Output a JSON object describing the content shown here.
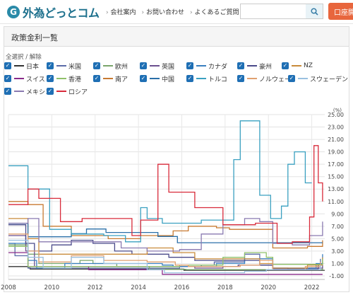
{
  "header": {
    "logo_mark": "G",
    "logo_text": "外為どっとコム",
    "nav": [
      "会社案内",
      "お問い合わせ",
      "よくあるご質問"
    ],
    "search_placeholder": "",
    "account_label": "口座開"
  },
  "panel": {
    "title": "政策金利一覧",
    "toggle_label": "全選択 / 解除"
  },
  "legend": [
    {
      "label": "日本",
      "color": "#333333"
    },
    {
      "label": "米国",
      "color": "#5b6ba8"
    },
    {
      "label": "欧州",
      "color": "#7aa66b"
    },
    {
      "label": "英国",
      "color": "#6b4f8f"
    },
    {
      "label": "カナダ",
      "color": "#3a7fbf"
    },
    {
      "label": "豪州",
      "color": "#4a4a8a"
    },
    {
      "label": "NZ",
      "color": "#c98b3a"
    },
    {
      "label": "スイス",
      "color": "#8a2a8a"
    },
    {
      "label": "香港",
      "color": "#8fc06a"
    },
    {
      "label": "南ア",
      "color": "#c87a32"
    },
    {
      "label": "中国",
      "color": "#2a6fa8"
    },
    {
      "label": "トルコ",
      "color": "#3aa0c0"
    },
    {
      "label": "ノルウェー",
      "color": "#e0a070"
    },
    {
      "label": "スウェーデン",
      "color": "#9ac0e0"
    },
    {
      "label": "メキシコ",
      "color": "#8a7ab0"
    },
    {
      "label": "ロシア",
      "color": "#d82a3a"
    }
  ],
  "chart_data": {
    "type": "line",
    "ylabel": "(%)",
    "ylim": [
      -1,
      25
    ],
    "yticks": [
      "25.00",
      "23.00",
      "21.00",
      "19.00",
      "17.00",
      "15.00",
      "13.00",
      "11.00",
      "9.00",
      "7.00",
      "5.00",
      "3.00",
      "1.00",
      "-1.00"
    ],
    "xlim": [
      2008,
      2022.6
    ],
    "xticks": [
      "2008",
      "2010",
      "2012",
      "2014",
      "2016",
      "2018",
      "2020",
      "2022"
    ],
    "grid": true,
    "series": [
      {
        "name": "日本",
        "color": "#333333",
        "points": [
          [
            2008,
            0.5
          ],
          [
            2008.9,
            0.3
          ],
          [
            2009,
            0.1
          ],
          [
            2016,
            0.1
          ],
          [
            2016.1,
            -0.1
          ],
          [
            2022.6,
            -0.1
          ]
        ]
      },
      {
        "name": "米国",
        "color": "#5b6ba8",
        "points": [
          [
            2008,
            4.25
          ],
          [
            2008.3,
            2.25
          ],
          [
            2008.9,
            0.25
          ],
          [
            2015.9,
            0.5
          ],
          [
            2016.9,
            0.75
          ],
          [
            2017.5,
            1.25
          ],
          [
            2018.9,
            2.5
          ],
          [
            2019.6,
            1.75
          ],
          [
            2020.2,
            0.25
          ],
          [
            2022.2,
            0.5
          ],
          [
            2022.4,
            1.75
          ]
        ]
      },
      {
        "name": "欧州",
        "color": "#7aa66b",
        "points": [
          [
            2008,
            4
          ],
          [
            2008.9,
            2.5
          ],
          [
            2009.4,
            1
          ],
          [
            2011.3,
            1.5
          ],
          [
            2011.9,
            1
          ],
          [
            2013,
            0.5
          ],
          [
            2014.5,
            0.05
          ],
          [
            2016.2,
            0
          ],
          [
            2022.5,
            0.5
          ]
        ]
      },
      {
        "name": "英国",
        "color": "#6b4f8f",
        "points": [
          [
            2008,
            5.5
          ],
          [
            2008.8,
            3
          ],
          [
            2009.2,
            0.5
          ],
          [
            2016.6,
            0.25
          ],
          [
            2017.9,
            0.5
          ],
          [
            2018.6,
            0.75
          ],
          [
            2020.2,
            0.1
          ],
          [
            2021.9,
            0.25
          ],
          [
            2022.5,
            1.25
          ]
        ]
      },
      {
        "name": "カナダ",
        "color": "#3a7fbf",
        "points": [
          [
            2008,
            4.25
          ],
          [
            2008.9,
            1.5
          ],
          [
            2009.3,
            0.25
          ],
          [
            2010.6,
            1
          ],
          [
            2015.1,
            0.75
          ],
          [
            2015.6,
            0.5
          ],
          [
            2017.6,
            1
          ],
          [
            2018.9,
            1.75
          ],
          [
            2020.2,
            0.25
          ],
          [
            2022.2,
            1
          ],
          [
            2022.5,
            2.5
          ]
        ]
      },
      {
        "name": "豪州",
        "color": "#4a4a8a",
        "points": [
          [
            2008,
            7.25
          ],
          [
            2008.8,
            4.25
          ],
          [
            2009.2,
            3
          ],
          [
            2010,
            4
          ],
          [
            2010.9,
            4.75
          ],
          [
            2011.9,
            4.25
          ],
          [
            2012.9,
            3
          ],
          [
            2013.7,
            2.5
          ],
          [
            2015.4,
            2
          ],
          [
            2016.6,
            1.5
          ],
          [
            2019.6,
            0.75
          ],
          [
            2020.2,
            0.25
          ],
          [
            2020.9,
            0.1
          ],
          [
            2022.3,
            0.85
          ]
        ]
      },
      {
        "name": "NZ",
        "color": "#c98b3a",
        "points": [
          [
            2008,
            8.25
          ],
          [
            2008.9,
            5
          ],
          [
            2009.4,
            2.5
          ],
          [
            2011.2,
            2.5
          ],
          [
            2014.4,
            3.5
          ],
          [
            2015.6,
            2.75
          ],
          [
            2016.6,
            1.75
          ],
          [
            2019.6,
            1
          ],
          [
            2020.2,
            0.25
          ],
          [
            2021.8,
            0.75
          ],
          [
            2022.5,
            2
          ]
        ]
      },
      {
        "name": "スイス",
        "color": "#8a2a8a",
        "points": [
          [
            2008,
            2.75
          ],
          [
            2008.9,
            0.5
          ],
          [
            2011.7,
            0
          ],
          [
            2015.1,
            -0.75
          ],
          [
            2022.5,
            -0.75
          ]
        ]
      },
      {
        "name": "香港",
        "color": "#8fc06a",
        "points": [
          [
            2008,
            3.75
          ],
          [
            2008.9,
            0.5
          ],
          [
            2015.9,
            0.75
          ],
          [
            2017.9,
            2
          ],
          [
            2018.9,
            2.75
          ],
          [
            2019.9,
            2
          ],
          [
            2020.2,
            0.86
          ],
          [
            2022.5,
            1.75
          ]
        ]
      },
      {
        "name": "南ア",
        "color": "#c87a32",
        "points": [
          [
            2008,
            11
          ],
          [
            2008.9,
            10.5
          ],
          [
            2009.6,
            7
          ],
          [
            2010.9,
            5.5
          ],
          [
            2012.6,
            5
          ],
          [
            2014.1,
            5.5
          ],
          [
            2015.6,
            6.25
          ],
          [
            2016.3,
            7
          ],
          [
            2017.6,
            6.75
          ],
          [
            2018.2,
            6.5
          ],
          [
            2019.6,
            6.5
          ],
          [
            2020.2,
            3.5
          ],
          [
            2021.8,
            3.75
          ],
          [
            2022.5,
            4.75
          ]
        ]
      },
      {
        "name": "中国",
        "color": "#2a6fa8",
        "points": [
          [
            2008,
            7.47
          ],
          [
            2008.9,
            5.31
          ],
          [
            2010.9,
            5.81
          ],
          [
            2011.6,
            6.56
          ],
          [
            2012.5,
            6
          ],
          [
            2014.9,
            5.35
          ],
          [
            2015.8,
            4.35
          ],
          [
            2020.2,
            4.35
          ],
          [
            2022.5,
            4.35
          ]
        ]
      },
      {
        "name": "トルコ",
        "color": "#3aa0c0",
        "points": [
          [
            2008,
            16.75
          ],
          [
            2008.9,
            13
          ],
          [
            2009.9,
            6.5
          ],
          [
            2010.9,
            5.75
          ],
          [
            2012.4,
            5.5
          ],
          [
            2013.4,
            4.5
          ],
          [
            2014.1,
            10
          ],
          [
            2014.4,
            8.25
          ],
          [
            2015.1,
            7.5
          ],
          [
            2016.9,
            8
          ],
          [
            2018.4,
            17.75
          ],
          [
            2018.7,
            24
          ],
          [
            2019.6,
            12
          ],
          [
            2020.1,
            8.25
          ],
          [
            2020.6,
            10.25
          ],
          [
            2020.9,
            17
          ],
          [
            2021.2,
            19
          ],
          [
            2021.7,
            14
          ],
          [
            2022.0,
            14
          ]
        ]
      },
      {
        "name": "ノルウェー",
        "color": "#e0a070",
        "points": [
          [
            2008,
            5.75
          ],
          [
            2008.9,
            3
          ],
          [
            2009.4,
            1.25
          ],
          [
            2010.9,
            2.25
          ],
          [
            2012.4,
            1.5
          ],
          [
            2014.4,
            1.25
          ],
          [
            2015.7,
            0.75
          ],
          [
            2016.3,
            0.5
          ],
          [
            2018.7,
            0.75
          ],
          [
            2019.6,
            1.5
          ],
          [
            2020.2,
            0
          ],
          [
            2021.7,
            0.5
          ],
          [
            2022.4,
            1.25
          ]
        ]
      },
      {
        "name": "スウェーデン",
        "color": "#9ac0e0",
        "points": [
          [
            2008,
            4.75
          ],
          [
            2008.9,
            2
          ],
          [
            2009.6,
            0.25
          ],
          [
            2010.9,
            2
          ],
          [
            2012.4,
            1
          ],
          [
            2014.4,
            0
          ],
          [
            2015.2,
            -0.5
          ],
          [
            2018.9,
            -0.25
          ],
          [
            2019.9,
            0
          ],
          [
            2022.4,
            0.75
          ]
        ]
      },
      {
        "name": "メキシコ",
        "color": "#8a7ab0",
        "points": [
          [
            2008,
            7.5
          ],
          [
            2008.9,
            8.25
          ],
          [
            2009.4,
            4.5
          ],
          [
            2013.2,
            3.5
          ],
          [
            2014.4,
            3
          ],
          [
            2015.9,
            3.25
          ],
          [
            2016.9,
            5.75
          ],
          [
            2017.9,
            7.25
          ],
          [
            2018.9,
            8.25
          ],
          [
            2019.6,
            7.75
          ],
          [
            2020.2,
            4.25
          ],
          [
            2021.1,
            4
          ],
          [
            2021.9,
            5.5
          ],
          [
            2022.5,
            7.75
          ]
        ]
      },
      {
        "name": "ロシア",
        "color": "#d82a3a",
        "points": [
          [
            2008,
            10.5
          ],
          [
            2008.9,
            13
          ],
          [
            2009.4,
            11.5
          ],
          [
            2010.4,
            7.75
          ],
          [
            2011.4,
            8.25
          ],
          [
            2013.7,
            5.5
          ],
          [
            2014.1,
            8
          ],
          [
            2014.9,
            17
          ],
          [
            2015.4,
            12.5
          ],
          [
            2016.6,
            10
          ],
          [
            2017.9,
            7.25
          ],
          [
            2019.4,
            7.5
          ],
          [
            2020.4,
            4.25
          ],
          [
            2021.1,
            4.5
          ],
          [
            2021.9,
            8.5
          ],
          [
            2022.1,
            20
          ],
          [
            2022.3,
            14
          ],
          [
            2022.5,
            11
          ]
        ]
      }
    ]
  }
}
